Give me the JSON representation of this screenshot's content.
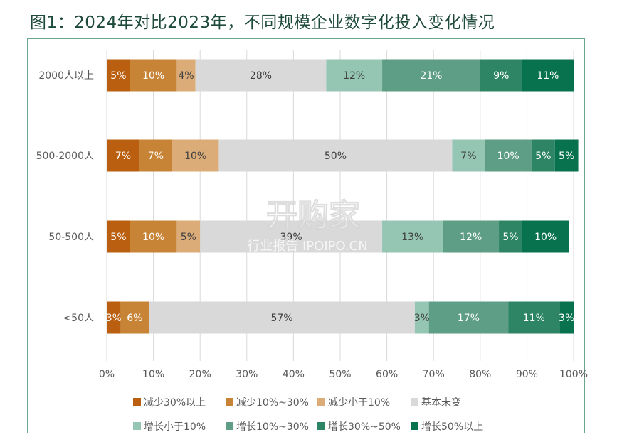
{
  "title": "图1：2024年对比2023年，不同规模企业数字化投入变化情况",
  "watermark": {
    "main": "开购家",
    "sub": "行业报告 IPOIPO.CN"
  },
  "colors": [
    "#b95f0f",
    "#c88436",
    "#dbac78",
    "#d9d9d9",
    "#95c6b4",
    "#5e9e86",
    "#2e8566",
    "#08714d"
  ],
  "chart_data": {
    "type": "bar",
    "orientation": "horizontal",
    "stacked": true,
    "categories": [
      "2000人以上",
      "500-2000人",
      "50-500人",
      "<50人"
    ],
    "series": [
      {
        "name": "减少30%以上",
        "values": [
          5,
          7,
          5,
          3
        ]
      },
      {
        "name": "减少10%~30%",
        "values": [
          10,
          7,
          10,
          6
        ]
      },
      {
        "name": "减少小于10%",
        "values": [
          4,
          10,
          5,
          0
        ]
      },
      {
        "name": "基本未变",
        "values": [
          28,
          50,
          39,
          57
        ]
      },
      {
        "name": "增长小于10%",
        "values": [
          12,
          7,
          13,
          3
        ]
      },
      {
        "name": "增长10%~30%",
        "values": [
          21,
          10,
          12,
          17
        ]
      },
      {
        "name": "增长30%~50%",
        "values": [
          9,
          5,
          5,
          11
        ]
      },
      {
        "name": "增长50%以上",
        "values": [
          11,
          5,
          10,
          3
        ]
      }
    ],
    "xlim": [
      0,
      100
    ],
    "x_ticks": [
      "0%",
      "10%",
      "20%",
      "30%",
      "40%",
      "50%",
      "60%",
      "70%",
      "80%",
      "90%",
      "100%"
    ],
    "grid": "vertical",
    "legend_position": "bottom"
  }
}
